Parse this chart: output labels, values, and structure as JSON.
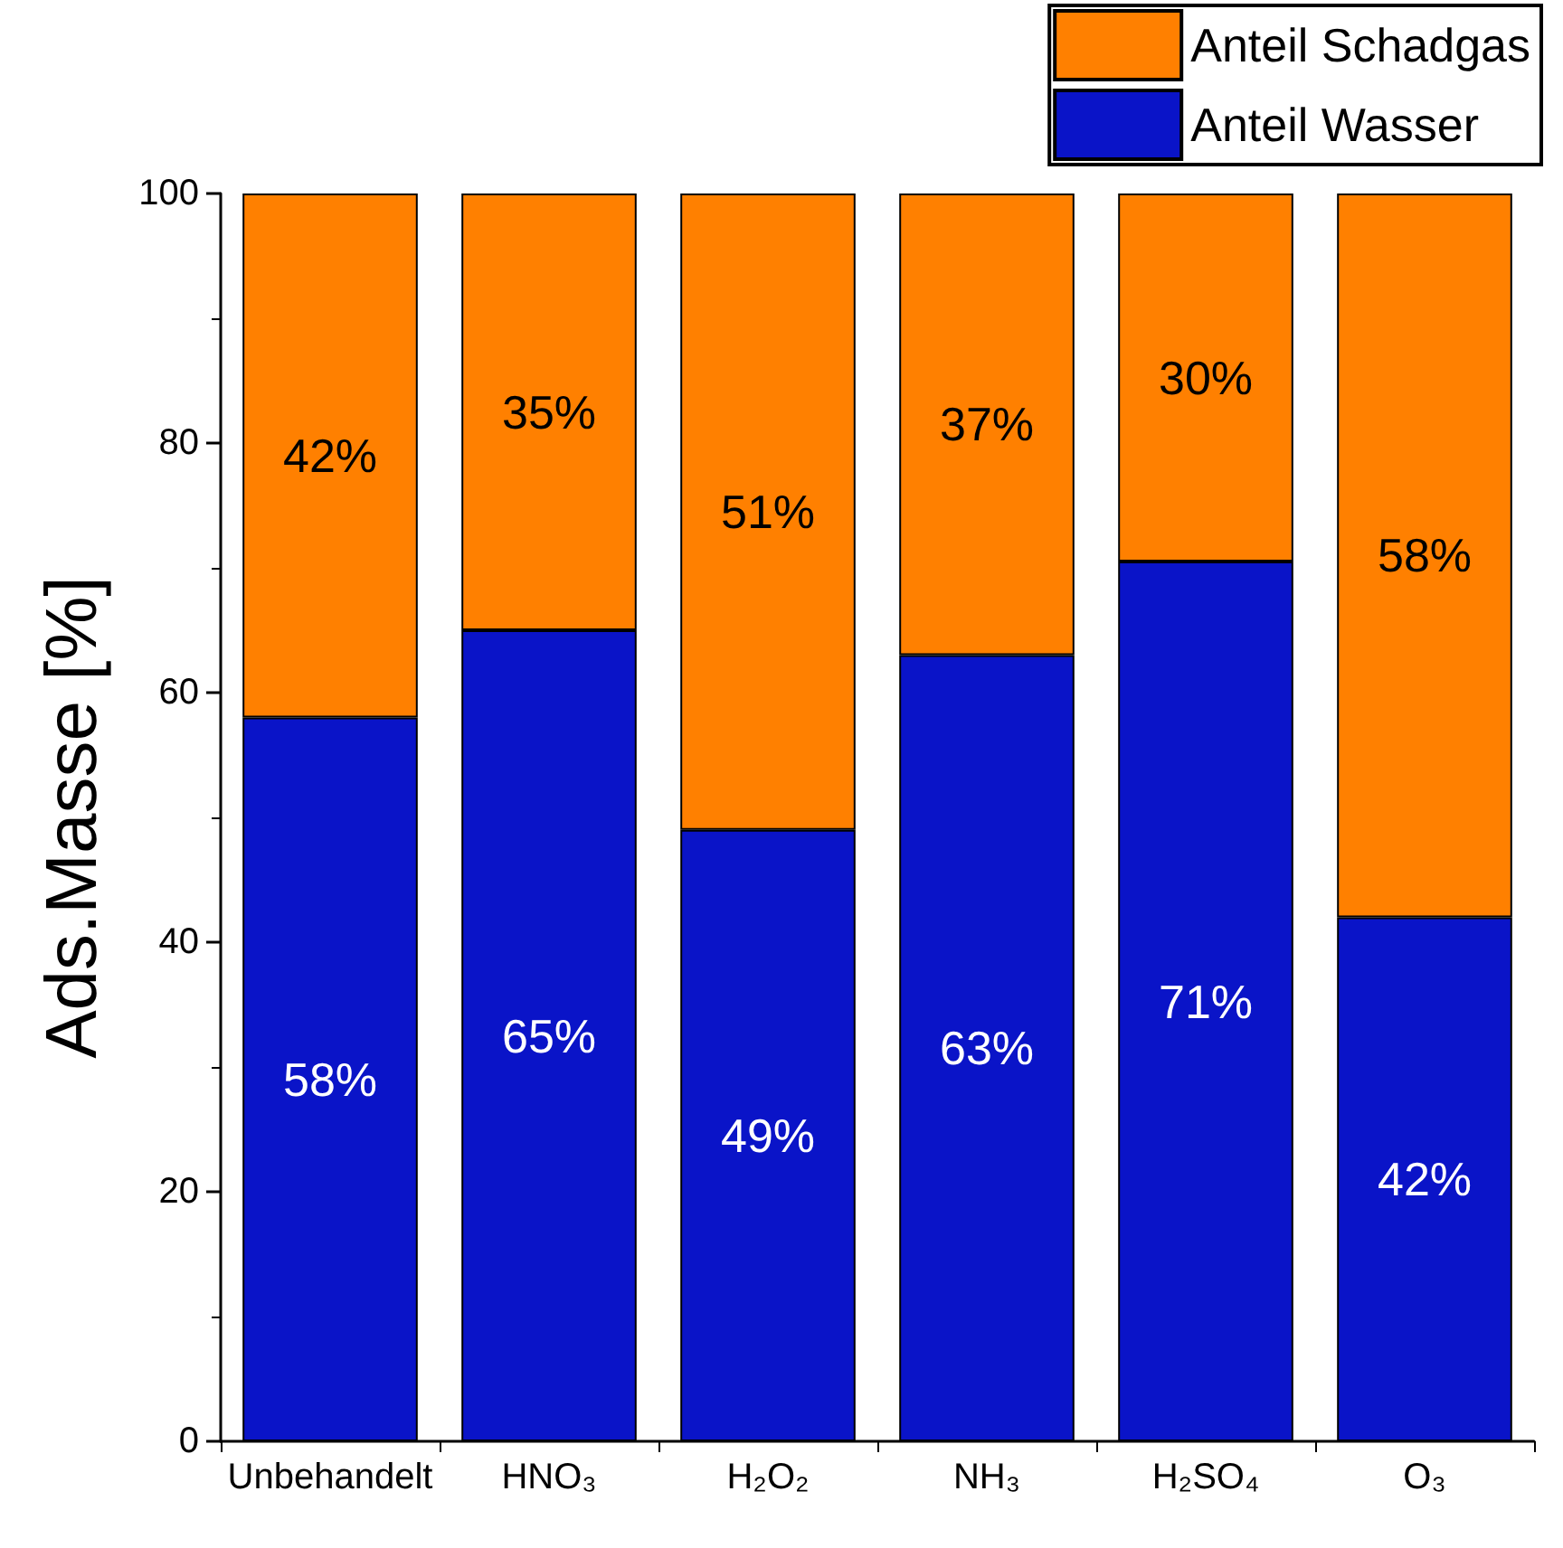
{
  "chart_data": {
    "type": "bar",
    "stacked": true,
    "ylabel": "Ads.Masse [%]",
    "categories": [
      "Unbehandelt",
      "HNO₃",
      "H₂O₂",
      "NH₃",
      "H₂SO₄",
      "O₃"
    ],
    "series": [
      {
        "name": "Anteil Wasser",
        "color": "#0a14c8",
        "values": [
          58,
          65,
          49,
          63,
          70.5,
          42
        ],
        "value_labels": [
          "58%",
          "65%",
          "49%",
          "63%",
          "71%",
          "42%"
        ]
      },
      {
        "name": "Anteil Schadgas",
        "color": "#ff8000",
        "values": [
          42,
          35,
          51,
          37,
          29.5,
          58
        ],
        "value_labels": [
          "42%",
          "35%",
          "51%",
          "37%",
          "30%",
          "58%"
        ]
      }
    ],
    "ylim": [
      0,
      100
    ],
    "yticks": [
      0,
      20,
      40,
      60,
      80,
      100
    ],
    "grid": false,
    "legend": "top right"
  }
}
